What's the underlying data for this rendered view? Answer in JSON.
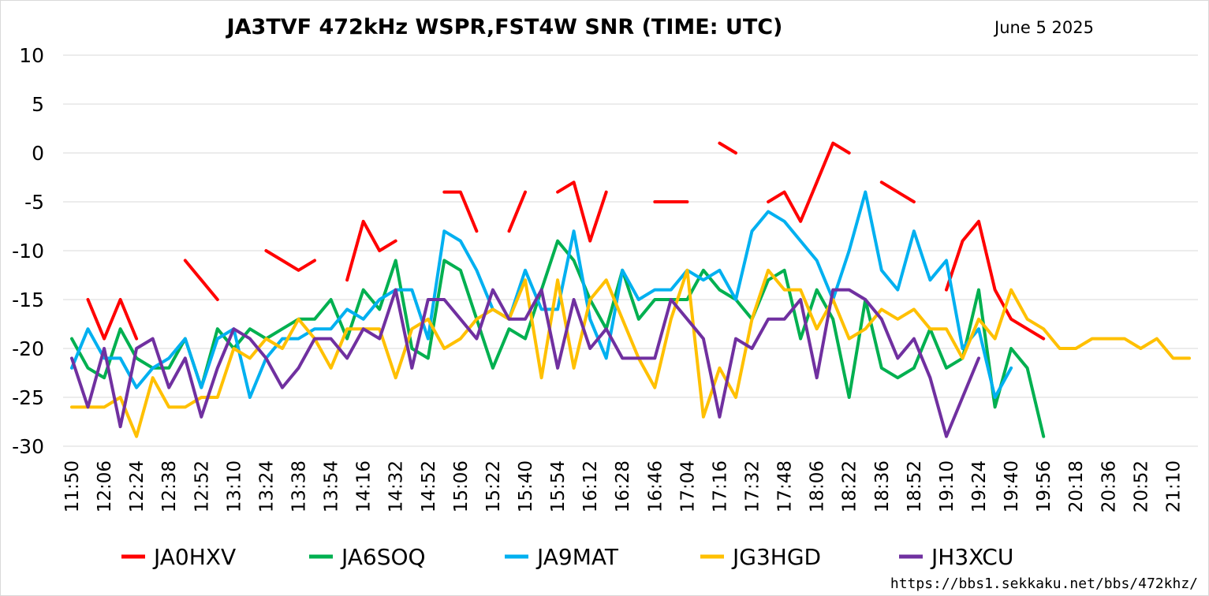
{
  "chart_data": {
    "type": "line",
    "title": "JA3TVF 472kHz WSPR,FST4W SNR (TIME: UTC)",
    "date_label": "June 5 2025",
    "source_url": "https://bbs1.sekkaku.net/bbs/472khz/",
    "ylim": [
      -30,
      10
    ],
    "yticks": [
      10,
      5,
      0,
      -5,
      -10,
      -15,
      -20,
      -25,
      -30
    ],
    "grid": true,
    "legend_position": "bottom",
    "x_labels": [
      "11:50",
      "12:06",
      "12:24",
      "12:38",
      "12:52",
      "13:10",
      "13:24",
      "13:38",
      "13:54",
      "14:16",
      "14:32",
      "14:52",
      "15:06",
      "15:22",
      "15:40",
      "15:54",
      "16:12",
      "16:28",
      "16:46",
      "17:04",
      "17:16",
      "17:32",
      "17:48",
      "18:06",
      "18:22",
      "18:36",
      "18:52",
      "19:10",
      "19:24",
      "19:40",
      "19:56",
      "20:18",
      "20:36",
      "20:52",
      "21:10"
    ],
    "num_points": 70,
    "series": [
      {
        "name": "JA0HXV",
        "color": "#ff0000",
        "values": [
          null,
          -15,
          -19,
          -15,
          -19,
          null,
          null,
          -11,
          -13,
          -15,
          null,
          null,
          -10,
          -11,
          -12,
          -11,
          null,
          -13,
          -7,
          -10,
          -9,
          null,
          null,
          -4,
          -4,
          -8,
          null,
          -8,
          -4,
          null,
          -4,
          -3,
          -9,
          -4,
          null,
          null,
          -5,
          -5,
          -5,
          null,
          1,
          0,
          null,
          -5,
          -4,
          -7,
          -3,
          1,
          0,
          null,
          -3,
          -4,
          -5,
          null,
          -14,
          -9,
          -7,
          -14,
          -17,
          -18,
          -19,
          null,
          null,
          null,
          null,
          null,
          null,
          null,
          null,
          null
        ]
      },
      {
        "name": "JA6SOQ",
        "color": "#00b050",
        "values": [
          -19,
          -22,
          -23,
          -18,
          -21,
          -22,
          -22,
          -19,
          -24,
          -18,
          -20,
          -18,
          -19,
          -18,
          -17,
          -17,
          -15,
          -19,
          -14,
          -16,
          -11,
          -20,
          -21,
          -11,
          -12,
          -17,
          -22,
          -18,
          -19,
          -14,
          -9,
          -11,
          -15,
          -18,
          -12,
          -17,
          -15,
          -15,
          -15,
          -12,
          -14,
          -15,
          -17,
          -13,
          -12,
          -19,
          -14,
          -17,
          -25,
          -15,
          -22,
          -23,
          -22,
          -18,
          -22,
          -21,
          -14,
          -26,
          -20,
          -22,
          -29,
          null,
          null,
          null,
          null,
          null,
          null,
          null,
          null,
          null
        ]
      },
      {
        "name": "JA9MAT",
        "color": "#00b0f0",
        "values": [
          -22,
          -18,
          -21,
          -21,
          -24,
          -22,
          -21,
          -19,
          -24,
          -19,
          -18,
          -25,
          -21,
          -19,
          -19,
          -18,
          -18,
          -16,
          -17,
          -15,
          -14,
          -14,
          -19,
          -8,
          -9,
          -12,
          -16,
          -17,
          -12,
          -16,
          -16,
          -8,
          -17,
          -21,
          -12,
          -15,
          -14,
          -14,
          -12,
          -13,
          -12,
          -15,
          -8,
          -6,
          -7,
          -9,
          -11,
          -15,
          -10,
          -4,
          -12,
          -14,
          -8,
          -13,
          -11,
          -20,
          -18,
          -25,
          -22,
          null,
          null,
          null,
          null,
          null,
          null,
          null,
          null,
          null,
          null,
          null
        ]
      },
      {
        "name": "JG3HGD",
        "color": "#ffc000",
        "values": [
          -26,
          -26,
          -26,
          -25,
          -29,
          -23,
          -26,
          -26,
          -25,
          -25,
          -20,
          -21,
          -19,
          -20,
          -17,
          -19,
          -22,
          -18,
          -18,
          -18,
          -23,
          -18,
          -17,
          -20,
          -19,
          -17,
          -16,
          -17,
          -13,
          -23,
          -13,
          -22,
          -15,
          -13,
          -17,
          -21,
          -24,
          -17,
          -12,
          -27,
          -22,
          -25,
          -17,
          -12,
          -14,
          -14,
          -18,
          -15,
          -19,
          -18,
          -16,
          -17,
          -16,
          -18,
          -18,
          -21,
          -17,
          -19,
          -14,
          -17,
          -18,
          -20,
          -20,
          -19,
          -19,
          -19,
          -20,
          -19,
          -21,
          -21
        ]
      },
      {
        "name": "JH3XCU",
        "color": "#7030a0",
        "values": [
          -21,
          -26,
          -20,
          -28,
          -20,
          -19,
          -24,
          -21,
          -27,
          -22,
          -18,
          -19,
          -21,
          -24,
          -22,
          -19,
          -19,
          -21,
          -18,
          -19,
          -14,
          -22,
          -15,
          -15,
          -17,
          -19,
          -14,
          -17,
          -17,
          -14,
          -22,
          -15,
          -20,
          -18,
          -21,
          -21,
          -21,
          -15,
          -17,
          -19,
          -27,
          -19,
          -20,
          -17,
          -17,
          -15,
          -23,
          -14,
          -14,
          -15,
          -17,
          -21,
          -19,
          -23,
          -29,
          -25,
          -21,
          null,
          null,
          null,
          null,
          null,
          null,
          null,
          null,
          null,
          null,
          null,
          null,
          null
        ]
      }
    ]
  }
}
